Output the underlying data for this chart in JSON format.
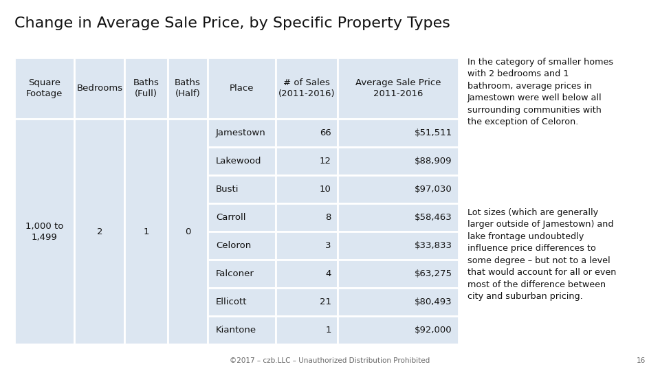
{
  "title": "Change in Average Sale Price, by Specific Property Types",
  "title_fontsize": 16,
  "background_color": "#ffffff",
  "table_bg": "#dce6f1",
  "col_headers": [
    "Square\nFootage",
    "Bedrooms",
    "Baths\n(Full)",
    "Baths\n(Half)",
    "Place",
    "# of Sales\n(2011-2016)",
    "Average Sale Price\n2011-2016"
  ],
  "left_cells": [
    "1,000 to\n1,499",
    "2",
    "1",
    "0"
  ],
  "rows": [
    [
      "Jamestown",
      "66",
      "$51,511"
    ],
    [
      "Lakewood",
      "12",
      "$88,909"
    ],
    [
      "Busti",
      "10",
      "$97,030"
    ],
    [
      "Carroll",
      "8",
      "$58,463"
    ],
    [
      "Celoron",
      "3",
      "$33,833"
    ],
    [
      "Falconer",
      "4",
      "$63,275"
    ],
    [
      "Ellicott",
      "21",
      "$80,493"
    ],
    [
      "Kiantone",
      "1",
      "$92,000"
    ]
  ],
  "side_text_1": "In the category of smaller homes\nwith 2 bedrooms and 1\nbathroom, average prices in\nJamestown were well below all\nsurrounding communities with\nthe exception of Celoron.",
  "side_text_2": "Lot sizes (which are generally\nlarger outside of Jamestown) and\nlake frontage undoubtedly\ninfluence price differences to\nsome degree – but not to a level\nthat would account for all or even\nmost of the difference between\ncity and suburban pricing.",
  "footer_text": "©2017 – czb.LLC – Unauthorized Distribution Prohibited",
  "footer_page": "16",
  "text_fontsize": 9.2,
  "cell_fontsize": 9.5,
  "header_fontsize": 9.5
}
